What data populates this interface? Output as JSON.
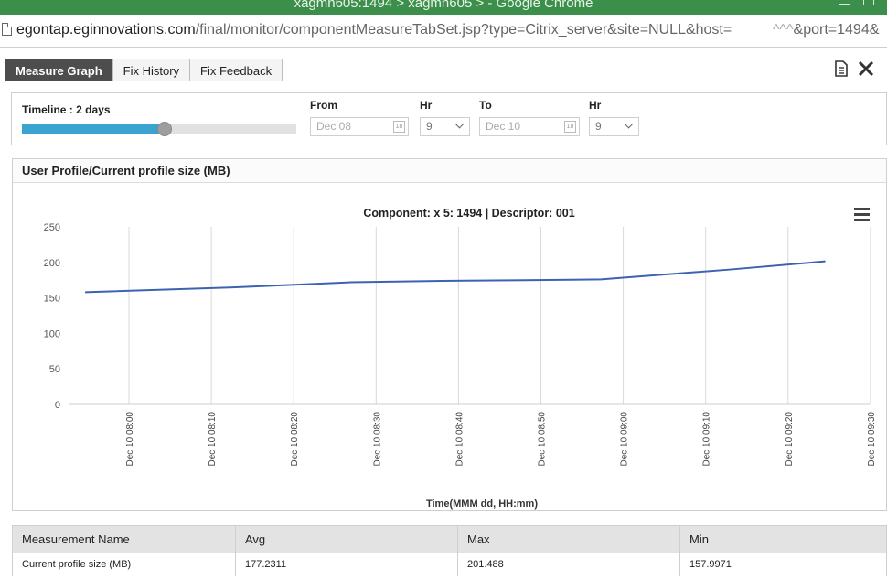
{
  "window": {
    "title": "xagmn605:1494 > xagmn605 > - Google Chrome"
  },
  "address": {
    "host": "egontap.eginnovations.com",
    "path": "/final/monitor/componentMeasureTabSet.jsp?type=Citrix_server&site=NULL&host=",
    "tail": "&port=1494&"
  },
  "tabs": [
    {
      "label": "Measure Graph",
      "active": true
    },
    {
      "label": "Fix History",
      "active": false
    },
    {
      "label": "Fix Feedback",
      "active": false
    }
  ],
  "toolbar": {
    "export_icon": "document-icon",
    "close_icon": "tools-close-icon"
  },
  "filters": {
    "timeline_label": "Timeline : 2 days",
    "timeline_fraction": 0.52,
    "from_label": "From",
    "from_value": "Dec 08",
    "from_hr_label": "Hr",
    "from_hr_value": "9",
    "to_label": "To",
    "to_value": "Dec 10",
    "to_hr_label": "Hr",
    "to_hr_value": "9",
    "calendar_glyph": "18"
  },
  "graph": {
    "header": "User Profile/Current profile size (MB)",
    "menu_icon": "hamburger-menu-icon"
  },
  "chart_data": {
    "type": "line",
    "title": "Component: x 5: 1494 | Descriptor: 001",
    "xlabel": "Time(MMM dd, HH:mm)",
    "ylabel": "",
    "ylim": [
      0,
      250
    ],
    "yticks": [
      0,
      50,
      100,
      150,
      200,
      250
    ],
    "xticks": [
      "Dec 10 08:00",
      "Dec 10 08:10",
      "Dec 10 08:20",
      "Dec 10 08:30",
      "Dec 10 08:40",
      "Dec 10 08:50",
      "Dec 10 09:00",
      "Dec 10 09:10",
      "Dec 10 09:20",
      "Dec 10 09:30"
    ],
    "x_minutes": [
      -5.3,
      13,
      26.9,
      38,
      48,
      57.3,
      73,
      84.5
    ],
    "values": [
      158,
      165,
      172,
      174,
      175,
      176,
      190,
      201.5
    ],
    "grid": true,
    "legend": "none",
    "series_color": "#3d63b0"
  },
  "summary_table": {
    "headers": [
      "Measurement Name",
      "Avg",
      "Max",
      "Min"
    ],
    "rows": [
      [
        "Current profile size (MB)",
        "177.2311",
        "201.488",
        "157.9971"
      ]
    ]
  }
}
